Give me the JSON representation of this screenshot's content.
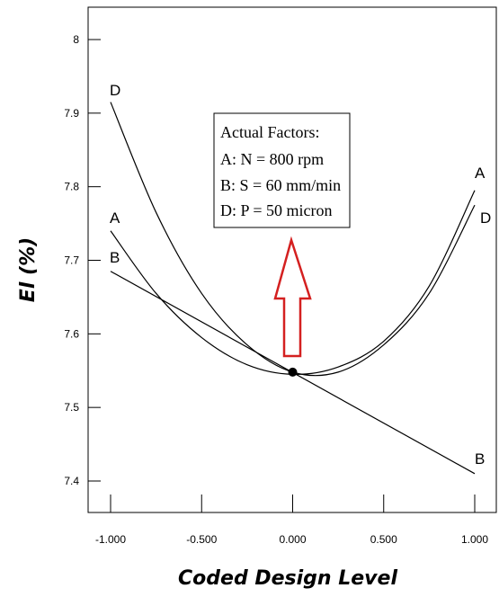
{
  "chart_data": {
    "type": "line",
    "xlabel": "Coded Design Level",
    "ylabel_italic": "El",
    "ylabel_unit": "(%)",
    "xlim": [
      -1.0,
      1.0
    ],
    "ylim": [
      7.4,
      8.0
    ],
    "x_ticks": [
      -1.0,
      -0.5,
      0.0,
      0.5,
      1.0
    ],
    "x_tick_labels": [
      "-1.000",
      "-0.500",
      "0.000",
      "0.500",
      "1.000"
    ],
    "y_ticks": [
      7.4,
      7.5,
      7.6,
      7.7,
      7.8,
      7.9,
      8.0
    ],
    "y_tick_labels": [
      "7.4",
      "7.5",
      "7.6",
      "7.7",
      "7.8",
      "7.9",
      "8"
    ],
    "grid": false,
    "series": [
      {
        "name": "A",
        "x": [
          -1.0,
          -0.75,
          -0.5,
          -0.25,
          0.0,
          0.25,
          0.5,
          0.75,
          1.0
        ],
        "y": [
          7.74,
          7.655,
          7.595,
          7.558,
          7.545,
          7.555,
          7.59,
          7.665,
          7.795
        ]
      },
      {
        "name": "B",
        "x": [
          -1.0,
          -0.5,
          0.0,
          0.5,
          1.0
        ],
        "y": [
          7.685,
          7.615,
          7.548,
          7.48,
          7.41
        ]
      },
      {
        "name": "D",
        "x": [
          -1.0,
          -0.75,
          -0.5,
          -0.25,
          0.0,
          0.25,
          0.5,
          0.75,
          1.0
        ],
        "y": [
          7.915,
          7.765,
          7.655,
          7.585,
          7.548,
          7.548,
          7.585,
          7.655,
          7.775
        ]
      }
    ],
    "center_point": {
      "x": 0.0,
      "y": 7.548
    },
    "curve_labels": [
      "D",
      "A",
      "B",
      "A",
      "D",
      "B"
    ],
    "annotation": {
      "lines": [
        "Actual Factors:",
        "A: N = 800 rpm",
        "B: S = 60 mm/min",
        "D: P = 50 micron"
      ],
      "arrow_color": "#d42020"
    }
  }
}
